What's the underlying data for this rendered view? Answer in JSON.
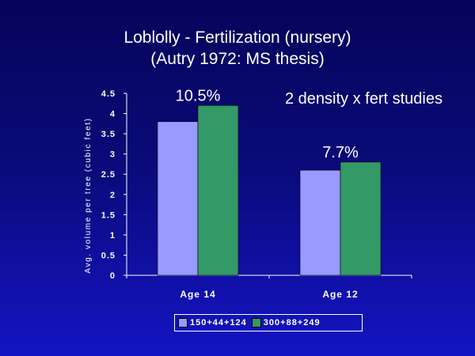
{
  "slide": {
    "title_line1": "Loblolly - Fertilization (nursery)",
    "title_line2": "(Autry 1972: MS thesis)",
    "study_note": "2 density x fert studies"
  },
  "chart_data": {
    "type": "bar",
    "categories": [
      "Age 14",
      "Age 12"
    ],
    "series": [
      {
        "name": "150+44+124",
        "values": [
          3.8,
          2.6
        ],
        "color": "#9999ff"
      },
      {
        "name": "300+88+249",
        "values": [
          4.2,
          2.8
        ],
        "color": "#339966"
      }
    ],
    "data_labels": [
      "10.5%",
      "7.7%"
    ],
    "ylabel": "Avg. volume per tree (cubic feet)",
    "xlabel": "",
    "ylim": [
      0,
      4.5
    ],
    "yticks": [
      "0",
      "0.5",
      "1",
      "1.5",
      "2",
      "2.5",
      "3",
      "3.5",
      "4",
      "4.5"
    ],
    "grid": false,
    "legend_position": "bottom"
  }
}
